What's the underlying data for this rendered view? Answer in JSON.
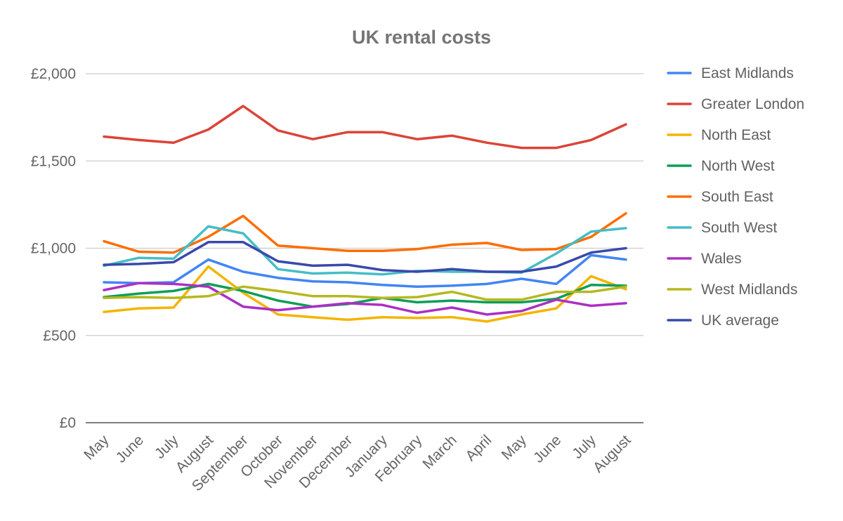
{
  "chart_data": {
    "type": "line",
    "title": "UK rental costs",
    "xlabel": "",
    "ylabel": "",
    "ylim": [
      0,
      2000
    ],
    "grid": true,
    "legend_position": "right",
    "y_ticks": [
      {
        "value": 0,
        "label": "£0"
      },
      {
        "value": 500,
        "label": "£500"
      },
      {
        "value": 1000,
        "label": "£1,000"
      },
      {
        "value": 1500,
        "label": "£1,500"
      },
      {
        "value": 2000,
        "label": "£2,000"
      }
    ],
    "categories": [
      "May",
      "June",
      "July",
      "August",
      "September",
      "October",
      "November",
      "December",
      "January",
      "February",
      "March",
      "April",
      "May",
      "June",
      "July",
      "August"
    ],
    "series": [
      {
        "name": "East Midlands",
        "color": "#4285f4",
        "values": [
          805,
          800,
          805,
          935,
          865,
          830,
          810,
          805,
          790,
          780,
          785,
          795,
          825,
          795,
          960,
          935
        ]
      },
      {
        "name": "Greater London",
        "color": "#db4437",
        "values": [
          1640,
          1620,
          1605,
          1680,
          1815,
          1675,
          1625,
          1665,
          1665,
          1625,
          1645,
          1605,
          1575,
          1575,
          1620,
          1710
        ]
      },
      {
        "name": "North East",
        "color": "#f4b400",
        "values": [
          635,
          655,
          660,
          895,
          745,
          620,
          605,
          590,
          605,
          600,
          605,
          580,
          620,
          655,
          840,
          765
        ]
      },
      {
        "name": "North West",
        "color": "#0f9d58",
        "values": [
          720,
          740,
          755,
          795,
          755,
          700,
          665,
          680,
          715,
          690,
          700,
          690,
          690,
          710,
          790,
          785
        ]
      },
      {
        "name": "South East",
        "color": "#ff6d00",
        "values": [
          1040,
          980,
          975,
          1065,
          1185,
          1015,
          1000,
          985,
          985,
          995,
          1020,
          1030,
          990,
          995,
          1065,
          1200
        ]
      },
      {
        "name": "South West",
        "color": "#46bdc6",
        "values": [
          900,
          945,
          940,
          1125,
          1085,
          880,
          855,
          860,
          850,
          870,
          865,
          865,
          860,
          970,
          1095,
          1115
        ]
      },
      {
        "name": "Wales",
        "color": "#ab30c4",
        "values": [
          760,
          800,
          795,
          780,
          665,
          645,
          665,
          685,
          675,
          630,
          660,
          620,
          640,
          705,
          670,
          685
        ]
      },
      {
        "name": "West Midlands",
        "color": "#b5b81f",
        "values": [
          715,
          720,
          715,
          725,
          780,
          755,
          725,
          725,
          715,
          720,
          750,
          705,
          705,
          750,
          750,
          780
        ]
      },
      {
        "name": "UK average",
        "color": "#3949ab",
        "values": [
          905,
          910,
          920,
          1035,
          1035,
          925,
          900,
          905,
          875,
          865,
          880,
          865,
          865,
          895,
          975,
          1000
        ]
      }
    ]
  }
}
